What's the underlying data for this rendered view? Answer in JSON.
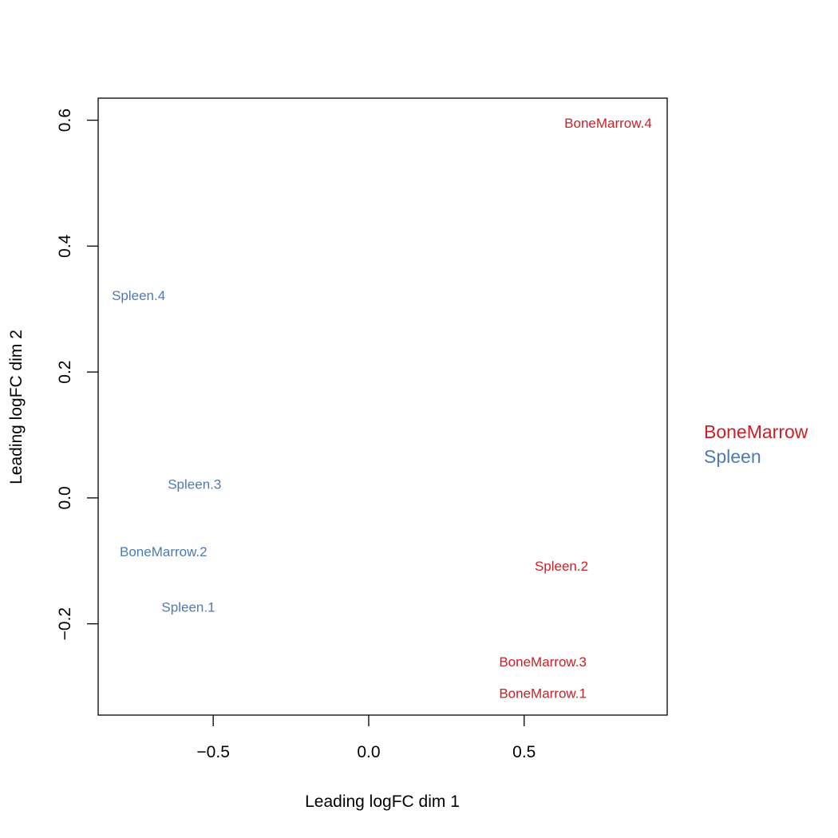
{
  "chart_data": {
    "type": "scatter",
    "title": "",
    "xlabel": "Leading logFC dim 1",
    "ylabel": "Leading logFC dim 2",
    "xlim": [
      -0.87,
      0.96
    ],
    "ylim": [
      -0.345,
      0.635
    ],
    "x_ticks": [
      -0.5,
      0.0,
      0.5
    ],
    "x_tick_labels": [
      "−0.5",
      "0.0",
      "0.5"
    ],
    "y_ticks": [
      -0.2,
      0.0,
      0.2,
      0.4,
      0.6
    ],
    "y_tick_labels": [
      "−0.2",
      "0.0",
      "0.2",
      "0.4",
      "0.6"
    ],
    "grid": false,
    "colors": {
      "BoneMarrow": "#cb2027",
      "Spleen": "#4d7ab5"
    },
    "points": [
      {
        "label": "BoneMarrow.4",
        "x": 0.77,
        "y": 0.596,
        "group": "BoneMarrow"
      },
      {
        "label": "Spleen.4",
        "x": -0.74,
        "y": 0.322,
        "group": "Spleen"
      },
      {
        "label": "Spleen.3",
        "x": -0.56,
        "y": 0.022,
        "group": "Spleen"
      },
      {
        "label": "BoneMarrow.2",
        "x": -0.66,
        "y": -0.085,
        "group": "Spleen"
      },
      {
        "label": "Spleen.2",
        "x": 0.62,
        "y": -0.108,
        "group": "BoneMarrow"
      },
      {
        "label": "Spleen.1",
        "x": -0.58,
        "y": -0.173,
        "group": "Spleen"
      },
      {
        "label": "BoneMarrow.3",
        "x": 0.56,
        "y": -0.26,
        "group": "BoneMarrow"
      },
      {
        "label": "BoneMarrow.1",
        "x": 0.56,
        "y": -0.31,
        "group": "BoneMarrow"
      }
    ],
    "legend": {
      "placement": "right",
      "entries": [
        {
          "name": "BoneMarrow",
          "color": "#cb2027"
        },
        {
          "name": "Spleen",
          "color": "#4d7ab5"
        }
      ]
    }
  }
}
